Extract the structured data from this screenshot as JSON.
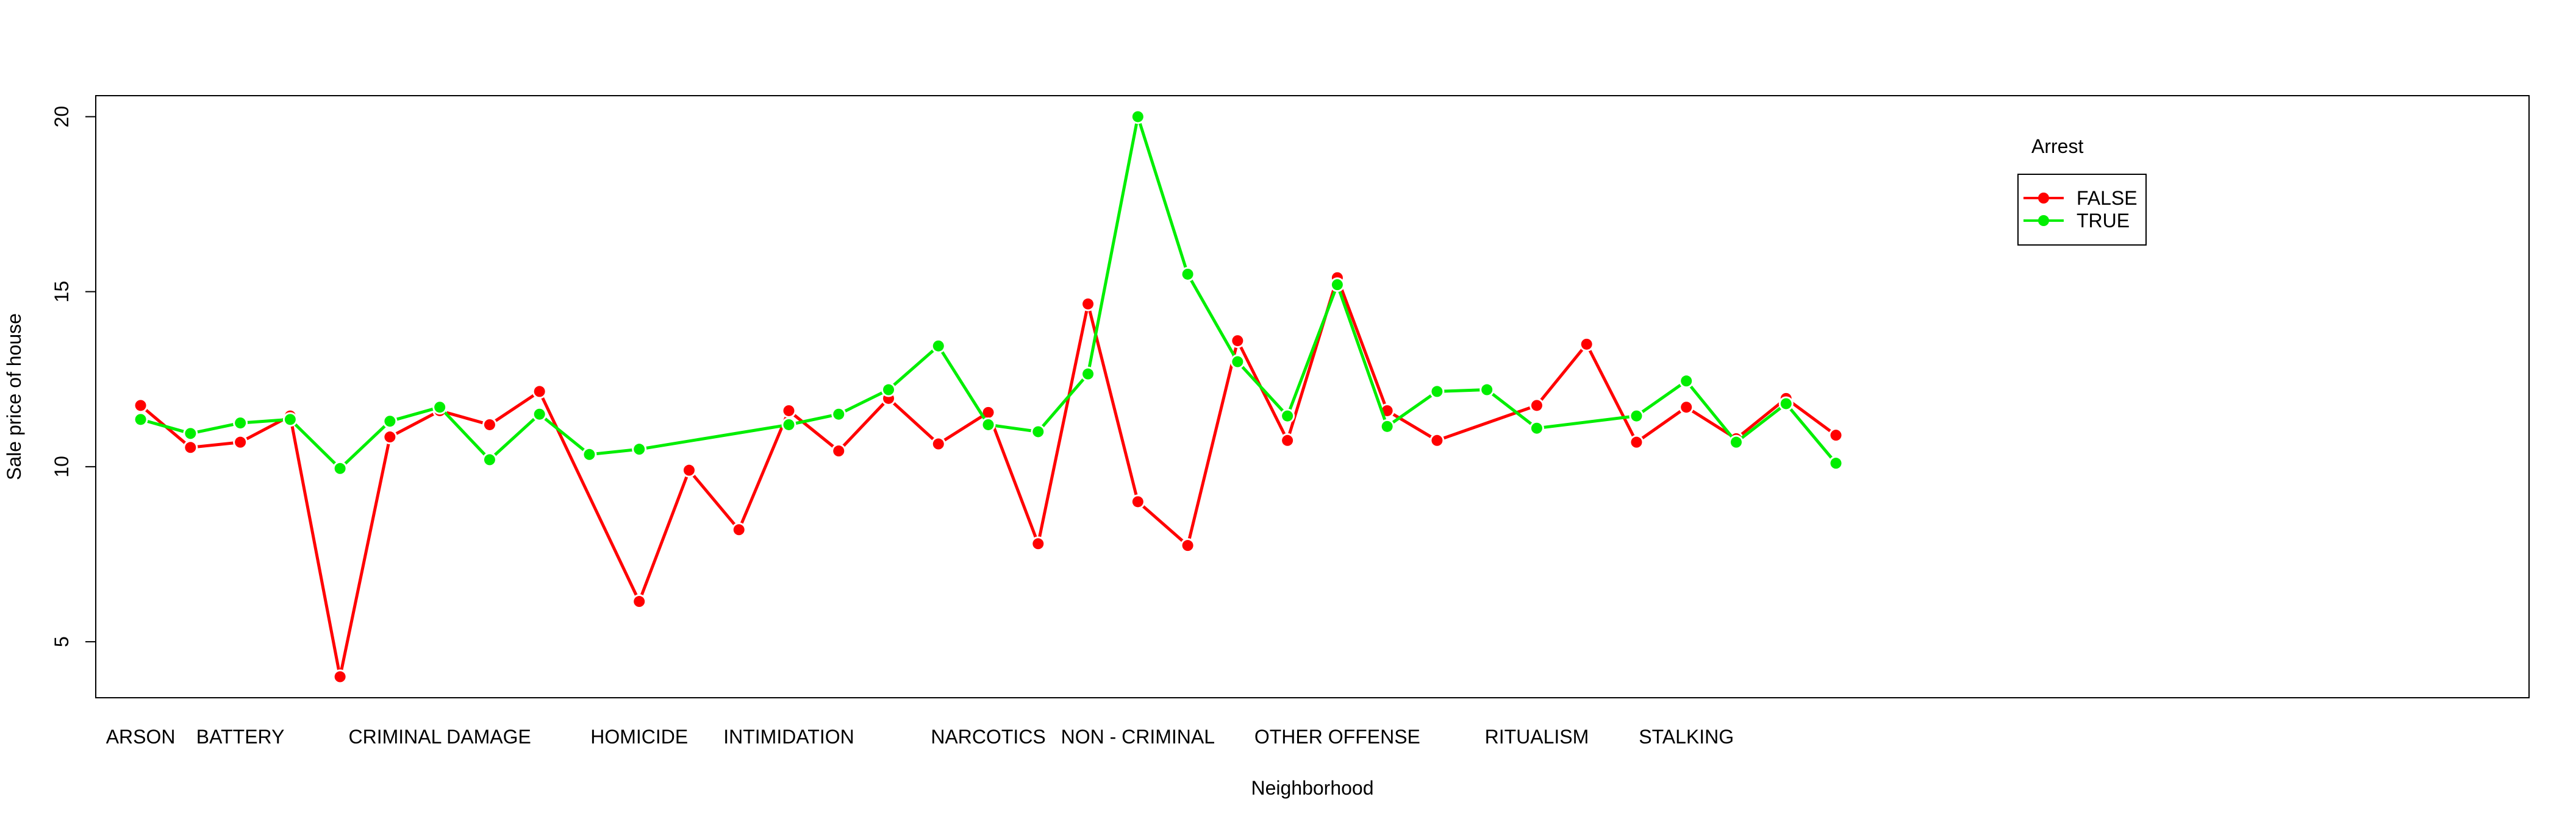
{
  "chart_data": {
    "type": "line",
    "xlabel": "Neighborhood",
    "ylabel": "Sale price of house",
    "ylim": [
      3.4,
      20.6
    ],
    "yticks": [
      5,
      10,
      15,
      20
    ],
    "grid": false,
    "legend_title": "Arrest",
    "legend_position": "top-right",
    "x_label_positions": [
      1,
      3,
      7,
      11,
      14,
      18,
      21,
      25,
      29,
      32
    ],
    "x_labels": [
      "ARSON",
      "BATTERY",
      "CRIMINAL DAMAGE",
      "HOMICIDE",
      "INTIMIDATION",
      "NARCOTICS",
      "NON - CRIMINAL",
      "OTHER OFFENSE",
      "RITUALISM",
      "STALKING"
    ],
    "series": [
      {
        "name": "FALSE",
        "color": "#ff0000",
        "points": [
          [
            1,
            11.75
          ],
          [
            2,
            10.55
          ],
          [
            3,
            10.7
          ],
          [
            4,
            11.45
          ],
          [
            5,
            4.0
          ],
          [
            6,
            10.85
          ],
          [
            7,
            11.6
          ],
          [
            8,
            11.2
          ],
          [
            9,
            12.15
          ],
          [
            11,
            6.15
          ],
          [
            12,
            9.9
          ],
          [
            13,
            8.2
          ],
          [
            14,
            11.6
          ],
          [
            15,
            10.45
          ],
          [
            16,
            11.95
          ],
          [
            17,
            10.65
          ],
          [
            18,
            11.55
          ],
          [
            19,
            7.8
          ],
          [
            20,
            14.65
          ],
          [
            21,
            9.0
          ],
          [
            22,
            7.75
          ],
          [
            23,
            13.6
          ],
          [
            24,
            10.75
          ],
          [
            25,
            15.4
          ],
          [
            26,
            11.6
          ],
          [
            27,
            10.75
          ],
          [
            29,
            11.75
          ],
          [
            30,
            13.5
          ],
          [
            31,
            10.7
          ],
          [
            32,
            11.7
          ],
          [
            33,
            10.8
          ],
          [
            34,
            11.95
          ],
          [
            35,
            10.9
          ]
        ]
      },
      {
        "name": "TRUE",
        "color": "#00ee00",
        "points": [
          [
            1,
            11.35
          ],
          [
            2,
            10.95
          ],
          [
            3,
            11.25
          ],
          [
            4,
            11.35
          ],
          [
            5,
            9.95
          ],
          [
            6,
            11.3
          ],
          [
            7,
            11.7
          ],
          [
            8,
            10.2
          ],
          [
            9,
            11.5
          ],
          [
            10,
            10.35
          ],
          [
            11,
            10.5
          ],
          [
            14,
            11.2
          ],
          [
            15,
            11.5
          ],
          [
            16,
            12.2
          ],
          [
            17,
            13.45
          ],
          [
            18,
            11.2
          ],
          [
            19,
            11.0
          ],
          [
            20,
            12.65
          ],
          [
            21,
            20.0
          ],
          [
            22,
            15.5
          ],
          [
            23,
            13.0
          ],
          [
            24,
            11.45
          ],
          [
            25,
            15.2
          ],
          [
            26,
            11.15
          ],
          [
            27,
            12.15
          ],
          [
            28,
            12.2
          ],
          [
            29,
            11.1
          ],
          [
            31,
            11.45
          ],
          [
            32,
            12.45
          ],
          [
            33,
            10.7
          ],
          [
            34,
            11.8
          ],
          [
            35,
            10.1
          ]
        ]
      }
    ]
  }
}
